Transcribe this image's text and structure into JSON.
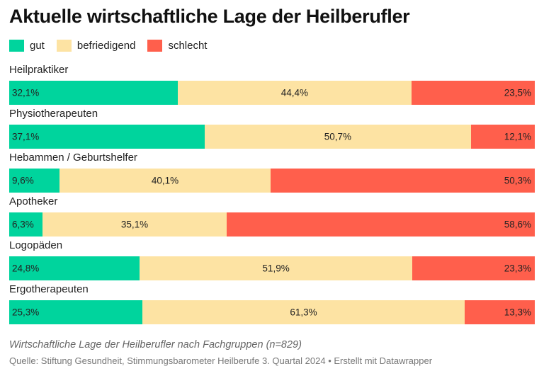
{
  "title": "Aktuelle wirtschaftliche Lage der Heilberufler",
  "subtitle": "Wirtschaftliche Lage der Heilberufler nach Fachgruppen (n=829)",
  "source": "Quelle: Stiftung Gesundheit, Stimmungsbarometer Heilberufe 3. Quartal 2024 • Erstellt mit Datawrapper",
  "colors": {
    "gut": "#00d49d",
    "befriedigend": "#fde3a3",
    "schlecht": "#ff5f4c"
  },
  "chart_data": {
    "type": "bar",
    "stacked": true,
    "orientation": "horizontal",
    "unit": "%",
    "categories": [
      "Heilpraktiker",
      "Physiotherapeuten",
      "Hebammen / Geburtshelfer",
      "Apotheker",
      "Logopäden",
      "Ergotherapeuten"
    ],
    "series": [
      {
        "name": "gut",
        "values": [
          32.1,
          37.1,
          9.6,
          6.3,
          24.8,
          25.3
        ],
        "labels": [
          "32,1%",
          "37,1%",
          "9,6%",
          "6,3%",
          "24,8%",
          "25,3%"
        ]
      },
      {
        "name": "befriedigend",
        "values": [
          44.4,
          50.7,
          40.1,
          35.1,
          51.9,
          61.3
        ],
        "labels": [
          "44,4%",
          "50,7%",
          "40,1%",
          "35,1%",
          "51,9%",
          "61,3%"
        ]
      },
      {
        "name": "schlecht",
        "values": [
          23.5,
          12.1,
          50.3,
          58.6,
          23.3,
          13.3
        ],
        "labels": [
          "23,5%",
          "12,1%",
          "50,3%",
          "58,6%",
          "23,3%",
          "13,3%"
        ]
      }
    ],
    "legend_position": "top-left",
    "grid": false
  }
}
